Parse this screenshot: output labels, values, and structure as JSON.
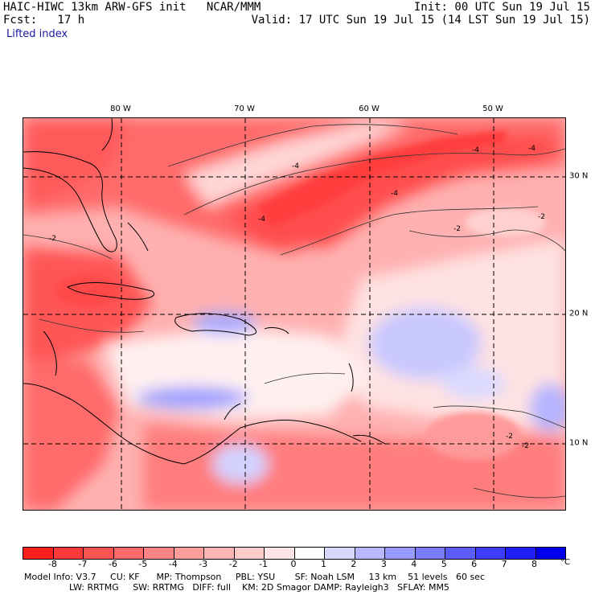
{
  "header": {
    "title": "HAIC-HIWC 13km ARW-GFS init   NCAR/MMM",
    "forecast": "Fcst:   17 h",
    "init": "Init: 00 UTC Sun 19 Jul 15",
    "valid": "Valid: 17 UTC Sun 19 Jul 15 (14 LST Sun 19 Jul 15)",
    "field": "Lifted index"
  },
  "axes": {
    "longitudes": [
      "80 W",
      "70 W",
      "60 W",
      "50 W"
    ],
    "latitudes": [
      "30 N",
      "20 N",
      "10 N"
    ]
  },
  "contour_labels": [
    "-4",
    "-4",
    "-4",
    "-4",
    "-4",
    "-2",
    "-2",
    "-2",
    "-2",
    "-2"
  ],
  "colorbar": {
    "ticks": [
      "-8",
      "-7",
      "-6",
      "-5",
      "-4",
      "-3",
      "-2",
      "-1",
      "0",
      "1",
      "2",
      "3",
      "4",
      "5",
      "6",
      "7",
      "8"
    ],
    "unit": "°C",
    "colors": [
      "#ff1f1f",
      "#ff3a3a",
      "#ff5454",
      "#ff6b6b",
      "#ff8484",
      "#ff9c9c",
      "#ffb4b4",
      "#ffcccc",
      "#ffe6e6",
      "#ffffff",
      "#d8d8ff",
      "#b8b8ff",
      "#9a9aff",
      "#7b7bff",
      "#5c5cff",
      "#3d3dff",
      "#1f1fff",
      "#0000ee"
    ]
  },
  "footer": {
    "line1": "Model Info: V3.7     CU: KF      MP: Thompson     PBL: YSU       SF: Noah LSM     13 km    51 levels   60 sec",
    "line2": "                LW: RRTMG     SW: RRTMG   DIFF: full    KM: 2D Smagor DAMP: Rayleigh3   SFLAY: MM5"
  }
}
